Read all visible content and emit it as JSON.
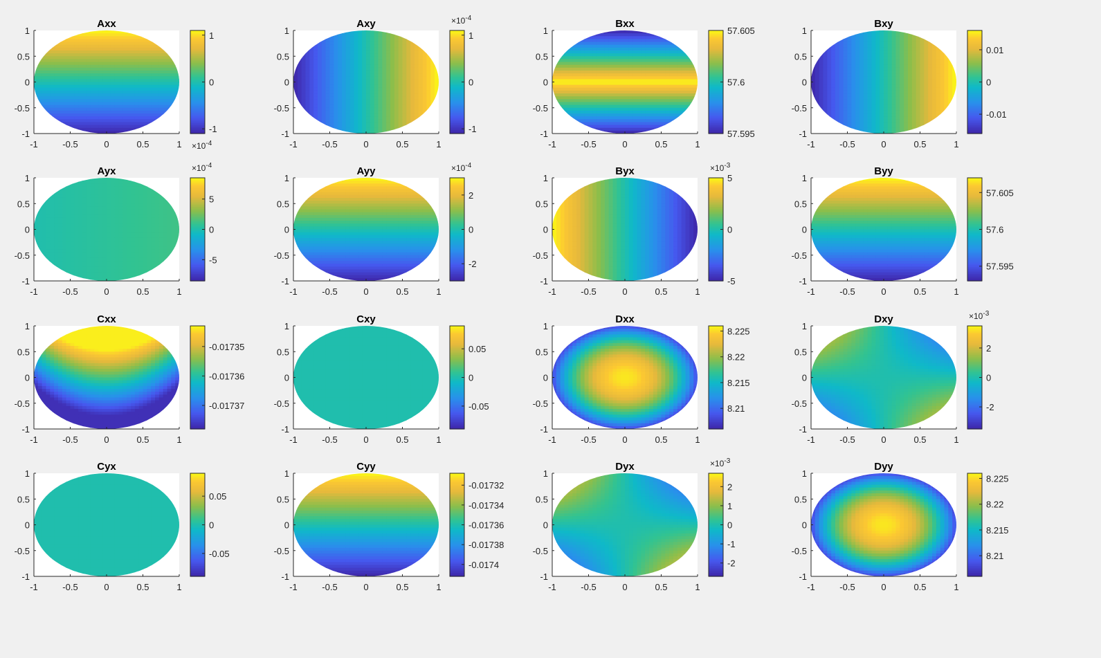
{
  "figure": {
    "background": "#f0f0f0",
    "colormap": "parula"
  },
  "chart_data": [
    {
      "type": "heatmap",
      "title": "Axx",
      "pattern": "yramp",
      "xlim": [
        -1,
        1
      ],
      "ylim": [
        -1,
        1
      ],
      "xticks": [
        "-1",
        "-0.5",
        "0",
        "0.5",
        "1"
      ],
      "yticks": [
        "1",
        "0.5",
        "0",
        "-0.5",
        "-1"
      ],
      "clim": [
        -1.1,
        1.1
      ],
      "colorbar": {
        "ticks": [
          {
            "v": 1,
            "label": "1"
          },
          {
            "v": 0,
            "label": "0"
          },
          {
            "v": -1,
            "label": "-1"
          }
        ],
        "exponent": "-4",
        "exponent_pos": "bottom"
      }
    },
    {
      "type": "heatmap",
      "title": "Axy",
      "pattern": "xramp",
      "xlim": [
        -1,
        1
      ],
      "ylim": [
        -1,
        1
      ],
      "xticks": [
        "-1",
        "-0.5",
        "0",
        "0.5",
        "1"
      ],
      "yticks": [
        "1",
        "0.5",
        "0",
        "-0.5",
        "-1"
      ],
      "clim": [
        -1.1,
        1.1
      ],
      "colorbar": {
        "ticks": [
          {
            "v": 1,
            "label": "1"
          },
          {
            "v": 0,
            "label": "0"
          },
          {
            "v": -1,
            "label": "-1"
          }
        ],
        "exponent": "-4",
        "exponent_pos": "top"
      }
    },
    {
      "type": "heatmap",
      "title": "Bxx",
      "pattern": "yabs_inv",
      "xlim": [
        -1,
        1
      ],
      "ylim": [
        -1,
        1
      ],
      "xticks": [
        "-1",
        "-0.5",
        "0",
        "0.5",
        "1"
      ],
      "yticks": [
        "1",
        "0.5",
        "0",
        "-0.5",
        "-1"
      ],
      "clim": [
        57.595,
        57.605
      ],
      "colorbar": {
        "ticks": [
          {
            "v": 57.605,
            "label": "57.605"
          },
          {
            "v": 57.6,
            "label": "57.6"
          },
          {
            "v": 57.595,
            "label": "57.595"
          }
        ],
        "exponent": "",
        "exponent_pos": ""
      }
    },
    {
      "type": "heatmap",
      "title": "Bxy",
      "pattern": "xramp",
      "xlim": [
        -1,
        1
      ],
      "ylim": [
        -1,
        1
      ],
      "xticks": [
        "-1",
        "-0.5",
        "0",
        "0.5",
        "1"
      ],
      "yticks": [
        "1",
        "0.5",
        "0",
        "-0.5",
        "-1"
      ],
      "clim": [
        -0.016,
        0.016
      ],
      "colorbar": {
        "ticks": [
          {
            "v": 0.01,
            "label": "0.01"
          },
          {
            "v": 0,
            "label": "0"
          },
          {
            "v": -0.01,
            "label": "-0.01"
          }
        ],
        "exponent": "",
        "exponent_pos": ""
      }
    },
    {
      "type": "heatmap",
      "title": "Ayx",
      "pattern": "flat_slight",
      "xlim": [
        -1,
        1
      ],
      "ylim": [
        -1,
        1
      ],
      "xticks": [
        "-1",
        "-0.5",
        "0",
        "0.5",
        "1"
      ],
      "yticks": [
        "1",
        "0.5",
        "0",
        "-0.5",
        "-1"
      ],
      "clim": [
        -8.5,
        8.5
      ],
      "colorbar": {
        "ticks": [
          {
            "v": 5,
            "label": "5"
          },
          {
            "v": 0,
            "label": "0"
          },
          {
            "v": -5,
            "label": "-5"
          }
        ],
        "exponent": "-4",
        "exponent_pos": "top"
      }
    },
    {
      "type": "heatmap",
      "title": "Ayy",
      "pattern": "yramp",
      "xlim": [
        -1,
        1
      ],
      "ylim": [
        -1,
        1
      ],
      "xticks": [
        "-1",
        "-0.5",
        "0",
        "0.5",
        "1"
      ],
      "yticks": [
        "1",
        "0.5",
        "0",
        "-0.5",
        "-1"
      ],
      "clim": [
        -3,
        3
      ],
      "colorbar": {
        "ticks": [
          {
            "v": 2,
            "label": "2"
          },
          {
            "v": 0,
            "label": "0"
          },
          {
            "v": -2,
            "label": "-2"
          }
        ],
        "exponent": "-4",
        "exponent_pos": "top"
      }
    },
    {
      "type": "heatmap",
      "title": "Byx",
      "pattern": "xramp_neg",
      "xlim": [
        -1,
        1
      ],
      "ylim": [
        -1,
        1
      ],
      "xticks": [
        "-1",
        "-0.5",
        "0",
        "0.5",
        "1"
      ],
      "yticks": [
        "1",
        "0.5",
        "0",
        "-0.5",
        "-1"
      ],
      "clim": [
        -5,
        5
      ],
      "colorbar": {
        "ticks": [
          {
            "v": 5,
            "label": "5"
          },
          {
            "v": 0,
            "label": "0"
          },
          {
            "v": -5,
            "label": "-5"
          }
        ],
        "exponent": "-3",
        "exponent_pos": "top"
      }
    },
    {
      "type": "heatmap",
      "title": "Byy",
      "pattern": "yramp",
      "xlim": [
        -1,
        1
      ],
      "ylim": [
        -1,
        1
      ],
      "xticks": [
        "-1",
        "-0.5",
        "0",
        "0.5",
        "1"
      ],
      "yticks": [
        "1",
        "0.5",
        "0",
        "-0.5",
        "-1"
      ],
      "clim": [
        57.593,
        57.607
      ],
      "colorbar": {
        "ticks": [
          {
            "v": 57.605,
            "label": "57.605"
          },
          {
            "v": 57.6,
            "label": "57.6"
          },
          {
            "v": 57.595,
            "label": "57.595"
          }
        ],
        "exponent": "",
        "exponent_pos": ""
      }
    },
    {
      "type": "heatmap",
      "title": "Cxx",
      "pattern": "cxx",
      "xlim": [
        -1,
        1
      ],
      "ylim": [
        -1,
        1
      ],
      "xticks": [
        "-1",
        "-0.5",
        "0",
        "0.5",
        "1"
      ],
      "yticks": [
        "1",
        "0.5",
        "0",
        "-0.5",
        "-1"
      ],
      "clim": [
        -0.017378,
        -0.017343
      ],
      "colorbar": {
        "ticks": [
          {
            "v": -0.01735,
            "label": "-0.01735"
          },
          {
            "v": -0.01736,
            "label": "-0.01736"
          },
          {
            "v": -0.01737,
            "label": "-0.01737"
          }
        ],
        "exponent": "",
        "exponent_pos": ""
      }
    },
    {
      "type": "heatmap",
      "title": "Cxy",
      "pattern": "flat",
      "xlim": [
        -1,
        1
      ],
      "ylim": [
        -1,
        1
      ],
      "xticks": [
        "-1",
        "-0.5",
        "0",
        "0.5",
        "1"
      ],
      "yticks": [
        "1",
        "0.5",
        "0",
        "-0.5",
        "-1"
      ],
      "clim": [
        -0.09,
        0.09
      ],
      "colorbar": {
        "ticks": [
          {
            "v": 0.05,
            "label": "0.05"
          },
          {
            "v": 0,
            "label": "0"
          },
          {
            "v": -0.05,
            "label": "-0.05"
          }
        ],
        "exponent": "",
        "exponent_pos": ""
      }
    },
    {
      "type": "heatmap",
      "title": "Dxx",
      "pattern": "radial",
      "xlim": [
        -1,
        1
      ],
      "ylim": [
        -1,
        1
      ],
      "xticks": [
        "-1",
        "-0.5",
        "0",
        "0.5",
        "1"
      ],
      "yticks": [
        "1",
        "0.5",
        "0",
        "-0.5",
        "-1"
      ],
      "clim": [
        8.206,
        8.226
      ],
      "colorbar": {
        "ticks": [
          {
            "v": 8.225,
            "label": "8.225"
          },
          {
            "v": 8.22,
            "label": "8.22"
          },
          {
            "v": 8.215,
            "label": "8.215"
          },
          {
            "v": 8.21,
            "label": "8.21"
          }
        ],
        "exponent": "",
        "exponent_pos": ""
      }
    },
    {
      "type": "heatmap",
      "title": "Dxy",
      "pattern": "saddle",
      "xlim": [
        -1,
        1
      ],
      "ylim": [
        -1,
        1
      ],
      "xticks": [
        "-1",
        "-0.5",
        "0",
        "0.5",
        "1"
      ],
      "yticks": [
        "1",
        "0.5",
        "0",
        "-0.5",
        "-1"
      ],
      "clim": [
        -3.5,
        3.5
      ],
      "colorbar": {
        "ticks": [
          {
            "v": 2,
            "label": "2"
          },
          {
            "v": 0,
            "label": "0"
          },
          {
            "v": -2,
            "label": "-2"
          }
        ],
        "exponent": "-3",
        "exponent_pos": "top"
      }
    },
    {
      "type": "heatmap",
      "title": "Cyx",
      "pattern": "flat",
      "xlim": [
        -1,
        1
      ],
      "ylim": [
        -1,
        1
      ],
      "xticks": [
        "-1",
        "-0.5",
        "0",
        "0.5",
        "1"
      ],
      "yticks": [
        "1",
        "0.5",
        "0",
        "-0.5",
        "-1"
      ],
      "clim": [
        -0.09,
        0.09
      ],
      "colorbar": {
        "ticks": [
          {
            "v": 0.05,
            "label": "0.05"
          },
          {
            "v": 0,
            "label": "0"
          },
          {
            "v": -0.05,
            "label": "-0.05"
          }
        ],
        "exponent": "",
        "exponent_pos": ""
      }
    },
    {
      "type": "heatmap",
      "title": "Cyy",
      "pattern": "yramp",
      "xlim": [
        -1,
        1
      ],
      "ylim": [
        -1,
        1
      ],
      "xticks": [
        "-1",
        "-0.5",
        "0",
        "0.5",
        "1"
      ],
      "yticks": [
        "1",
        "0.5",
        "0",
        "-0.5",
        "-1"
      ],
      "clim": [
        -0.017412,
        -0.017308
      ],
      "colorbar": {
        "ticks": [
          {
            "v": -0.01732,
            "label": "-0.01732"
          },
          {
            "v": -0.01734,
            "label": "-0.01734"
          },
          {
            "v": -0.01736,
            "label": "-0.01736"
          },
          {
            "v": -0.01738,
            "label": "-0.01738"
          },
          {
            "v": -0.0174,
            "label": "-0.0174"
          }
        ],
        "exponent": "",
        "exponent_pos": ""
      }
    },
    {
      "type": "heatmap",
      "title": "Dyx",
      "pattern": "saddle_neg",
      "xlim": [
        -1,
        1
      ],
      "ylim": [
        -1,
        1
      ],
      "xticks": [
        "-1",
        "-0.5",
        "0",
        "0.5",
        "1"
      ],
      "yticks": [
        "1",
        "0.5",
        "0",
        "-0.5",
        "-1"
      ],
      "clim": [
        -2.7,
        2.7
      ],
      "colorbar": {
        "ticks": [
          {
            "v": 2,
            "label": "2"
          },
          {
            "v": 1,
            "label": "1"
          },
          {
            "v": 0,
            "label": "0"
          },
          {
            "v": -1,
            "label": "-1"
          },
          {
            "v": -2,
            "label": "-2"
          }
        ],
        "exponent": "-3",
        "exponent_pos": "top"
      }
    },
    {
      "type": "heatmap",
      "title": "Dyy",
      "pattern": "radial",
      "xlim": [
        -1,
        1
      ],
      "ylim": [
        -1,
        1
      ],
      "xticks": [
        "-1",
        "-0.5",
        "0",
        "0.5",
        "1"
      ],
      "yticks": [
        "1",
        "0.5",
        "0",
        "-0.5",
        "-1"
      ],
      "clim": [
        8.206,
        8.226
      ],
      "colorbar": {
        "ticks": [
          {
            "v": 8.225,
            "label": "8.225"
          },
          {
            "v": 8.22,
            "label": "8.22"
          },
          {
            "v": 8.215,
            "label": "8.215"
          },
          {
            "v": 8.21,
            "label": "8.21"
          }
        ],
        "exponent": "",
        "exponent_pos": ""
      }
    }
  ]
}
